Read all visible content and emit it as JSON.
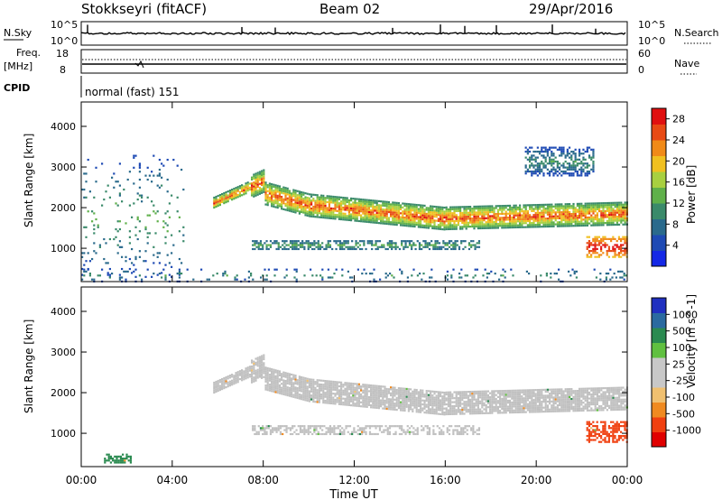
{
  "header": {
    "station": "Stokkseyri (fitACF)",
    "beam": "Beam 02",
    "date": "29/Apr/2016"
  },
  "strips": {
    "nsky": {
      "label": "N.Sky",
      "right_label": "N.Search",
      "ticks_left": [
        "10^5",
        "10^0"
      ],
      "ticks_right": [
        "10^5",
        "10^0"
      ]
    },
    "freq": {
      "label_line1": "Freq.",
      "label_line2": "[MHz]",
      "right_label": "Nave",
      "ticks_left": [
        "18",
        "8"
      ],
      "ticks_right": [
        "60",
        "0"
      ]
    },
    "cpid": {
      "label": "CPID",
      "value": "normal (fast) 151"
    }
  },
  "colors": {
    "power": [
      "#1428e6",
      "#1e4ab4",
      "#2a6a8c",
      "#3a8a6a",
      "#5fb04a",
      "#a8d040",
      "#f0c020",
      "#f08a18",
      "#e84a14",
      "#e01010"
    ],
    "velocity": [
      "#e00000",
      "#f04010",
      "#f08a20",
      "#f0c070",
      "#c8c8c8",
      "#c8c8c8",
      "#60c040",
      "#2a8a50",
      "#2a6aa0",
      "#2030c0"
    ],
    "ground_scatter": "#c0c0c0"
  },
  "chart_data": [
    {
      "type": "heatmap",
      "title": "",
      "xlabel": "",
      "ylabel": "Slant Range [km]",
      "x_ticks": [
        "00:00",
        "04:00",
        "08:00",
        "12:00",
        "16:00",
        "20:00",
        "00:00"
      ],
      "x_range_hours": [
        0,
        24
      ],
      "y_ticks": [
        "4000",
        "3000",
        "2000",
        "1000"
      ],
      "ylim": [
        180,
        4600
      ],
      "colorbar": {
        "label": "Power [dB]",
        "ticks": [
          "28",
          "24",
          "20",
          "16",
          "12",
          "8",
          "4"
        ],
        "range": [
          0,
          30
        ]
      },
      "regions": [
        {
          "name": "main_band",
          "t_start": 5.8,
          "t_end": 24,
          "range_km": [
            1600,
            2500
          ],
          "power_db": [
            10,
            28
          ]
        },
        {
          "name": "upper_patch",
          "t_start": 19.5,
          "t_end": 22.5,
          "range_km": [
            2800,
            3500
          ],
          "power_db": [
            4,
            12
          ]
        },
        {
          "name": "lower_band",
          "t_start": 7.5,
          "t_end": 17.5,
          "range_km": [
            1000,
            1200
          ],
          "power_db": [
            6,
            14
          ]
        },
        {
          "name": "late_hotspot",
          "t_start": 22.2,
          "t_end": 24,
          "range_km": [
            800,
            1300
          ],
          "power_db": [
            20,
            30
          ]
        },
        {
          "name": "early_scatter",
          "t_start": 0,
          "t_end": 4.5,
          "range_km": [
            300,
            3300
          ],
          "power_db": [
            4,
            14
          ]
        },
        {
          "name": "near_range",
          "t_start": 0,
          "t_end": 24,
          "range_km": [
            200,
            500
          ],
          "power_db": [
            4,
            12
          ]
        }
      ]
    },
    {
      "type": "heatmap",
      "title": "",
      "xlabel": "Time UT",
      "ylabel": "Slant Range [km]",
      "x_ticks": [
        "00:00",
        "04:00",
        "08:00",
        "12:00",
        "16:00",
        "20:00",
        "00:00"
      ],
      "x_range_hours": [
        0,
        24
      ],
      "y_ticks": [
        "4000",
        "3000",
        "2000",
        "1000"
      ],
      "ylim": [
        180,
        4600
      ],
      "colorbar": {
        "label": "Velocity [m s^-1]",
        "ticks": [
          "1000",
          "500",
          "100",
          "25",
          "-25",
          "-100",
          "-500",
          "-1000"
        ],
        "range": [
          -1000,
          1000
        ]
      },
      "regions": [
        {
          "name": "main_band",
          "t_start": 5.8,
          "t_end": 24,
          "range_km": [
            1600,
            2500
          ],
          "velocity_ms": [
            -25,
            25
          ]
        },
        {
          "name": "lower_band",
          "t_start": 7.5,
          "t_end": 17.5,
          "range_km": [
            1000,
            1200
          ],
          "velocity_ms": [
            -25,
            25
          ]
        },
        {
          "name": "late_hotspot",
          "t_start": 22.2,
          "t_end": 24,
          "range_km": [
            800,
            1300
          ],
          "velocity_ms": [
            -1000,
            -500
          ]
        },
        {
          "name": "early_patch",
          "t_start": 1.0,
          "t_end": 2.2,
          "range_km": [
            300,
            500
          ],
          "velocity_ms": [
            100,
            300
          ]
        }
      ]
    }
  ],
  "axis_title_time": "Time UT"
}
